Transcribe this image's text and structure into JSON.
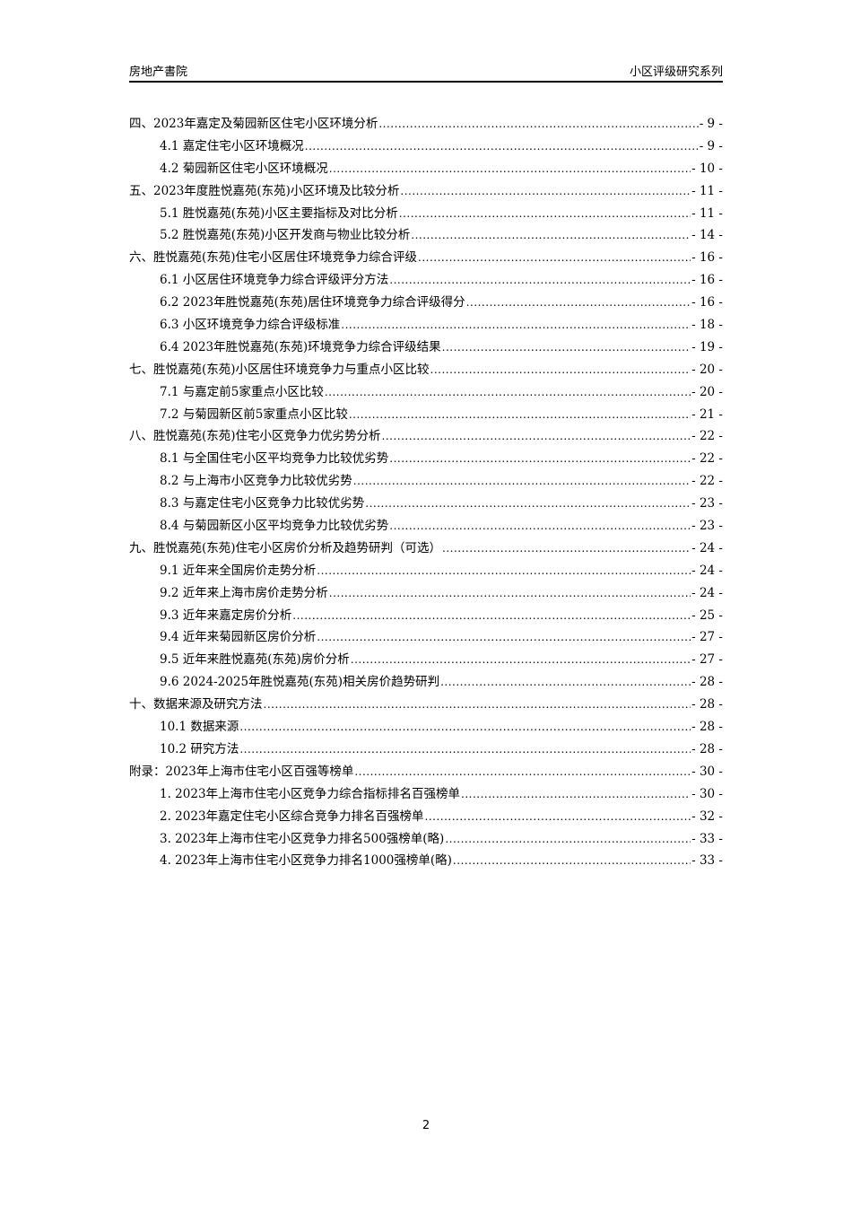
{
  "header": {
    "left": "房地产書院",
    "right": "小区评级研究系列"
  },
  "toc": [
    {
      "level": 1,
      "title": "四、2023年嘉定及菊园新区住宅小区环境分析",
      "page": "- 9 -"
    },
    {
      "level": 2,
      "title": "4.1 嘉定住宅小区环境概况",
      "page": "- 9 -"
    },
    {
      "level": 2,
      "title": "4.2 菊园新区住宅小区环境概况",
      "page": "- 10 -"
    },
    {
      "level": 1,
      "title": "五、2023年度胜悦嘉苑(东苑)小区环境及比较分析",
      "page": "- 11 -"
    },
    {
      "level": 2,
      "title": "5.1 胜悦嘉苑(东苑)小区主要指标及对比分析",
      "page": "- 11 -"
    },
    {
      "level": 2,
      "title": "5.2 胜悦嘉苑(东苑)小区开发商与物业比较分析",
      "page": "- 14 -"
    },
    {
      "level": 1,
      "title": "六、胜悦嘉苑(东苑)住宅小区居住环境竞争力综合评级",
      "page": "- 16 -"
    },
    {
      "level": 2,
      "title": "6.1 小区居住环境竞争力综合评级评分方法",
      "page": "- 16 -"
    },
    {
      "level": 2,
      "title": "6.2 2023年胜悦嘉苑(东苑)居住环境竞争力综合评级得分",
      "page": "- 16 -"
    },
    {
      "level": 2,
      "title": "6.3 小区环境竞争力综合评级标准",
      "page": "- 18 -"
    },
    {
      "level": 2,
      "title": "6.4 2023年胜悦嘉苑(东苑)环境竞争力综合评级结果",
      "page": "- 19 -"
    },
    {
      "level": 1,
      "title": "七、胜悦嘉苑(东苑)小区居住环境竞争力与重点小区比较",
      "page": "- 20 -"
    },
    {
      "level": 2,
      "title": "7.1 与嘉定前5家重点小区比较",
      "page": "- 20 -"
    },
    {
      "level": 2,
      "title": "7.2 与菊园新区前5家重点小区比较",
      "page": "- 21 -"
    },
    {
      "level": 1,
      "title": "八、胜悦嘉苑(东苑)住宅小区竞争力优劣势分析",
      "page": "- 22 -"
    },
    {
      "level": 2,
      "title": "8.1 与全国住宅小区平均竞争力比较优劣势",
      "page": "- 22 -"
    },
    {
      "level": 2,
      "title": "8.2 与上海市小区竞争力比较优劣势",
      "page": "- 22 -"
    },
    {
      "level": 2,
      "title": "8.3 与嘉定住宅小区竞争力比较优劣势",
      "page": "- 23 -"
    },
    {
      "level": 2,
      "title": "8.4 与菊园新区小区平均竞争力比较优劣势",
      "page": "- 23 -"
    },
    {
      "level": 1,
      "title": "九、胜悦嘉苑(东苑)住宅小区房价分析及趋势研判（可选）",
      "page": "- 24 -"
    },
    {
      "level": 2,
      "title": "9.1 近年来全国房价走势分析",
      "page": "- 24 -"
    },
    {
      "level": 2,
      "title": "9.2 近年来上海市房价走势分析",
      "page": "- 24 -"
    },
    {
      "level": 2,
      "title": "9.3 近年来嘉定房价分析",
      "page": "- 25 -"
    },
    {
      "level": 2,
      "title": "9.4 近年来菊园新区房价分析",
      "page": "- 27 -"
    },
    {
      "level": 2,
      "title": "9.5 近年来胜悦嘉苑(东苑)房价分析",
      "page": "- 27 -"
    },
    {
      "level": 2,
      "title": "9.6 2024-2025年胜悦嘉苑(东苑)相关房价趋势研判",
      "page": "- 28 -"
    },
    {
      "level": 1,
      "title": "十、数据来源及研究方法",
      "page": "- 28 -"
    },
    {
      "level": 2,
      "title": "10.1 数据来源",
      "page": "- 28 -"
    },
    {
      "level": 2,
      "title": "10.2 研究方法",
      "page": "- 28 -"
    },
    {
      "level": 1,
      "title": "附录：2023年上海市住宅小区百强等榜单",
      "page": "- 30 -"
    },
    {
      "level": 2,
      "title": "1. 2023年上海市住宅小区竞争力综合指标排名百强榜单",
      "page": "- 30 -"
    },
    {
      "level": 2,
      "title": "2. 2023年嘉定住宅小区综合竞争力排名百强榜单",
      "page": "- 32 -"
    },
    {
      "level": 2,
      "title": "3. 2023年上海市住宅小区竞争力排名500强榜单(略)",
      "page": "- 33 -"
    },
    {
      "level": 2,
      "title": "4. 2023年上海市住宅小区竞争力排名1000强榜单(略)",
      "page": "- 33 -"
    }
  ],
  "footer": {
    "page_number": "2"
  }
}
